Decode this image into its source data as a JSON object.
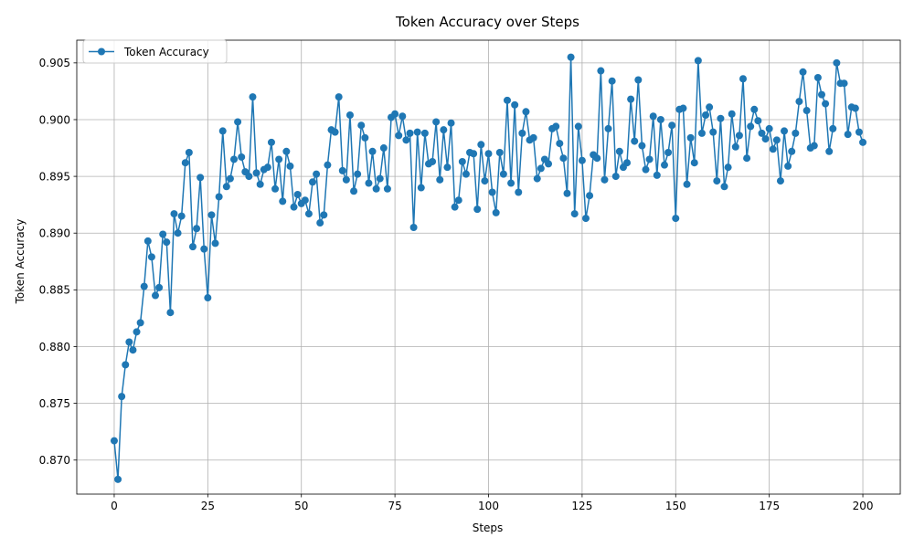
{
  "chart_data": {
    "type": "line",
    "title": "Token Accuracy over Steps",
    "xlabel": "Steps",
    "ylabel": "Token Accuracy",
    "xlim": [
      -10,
      210
    ],
    "ylim": [
      0.867,
      0.907
    ],
    "xticks": [
      0,
      25,
      50,
      75,
      100,
      125,
      150,
      175,
      200
    ],
    "xtick_labels": [
      "0",
      "25",
      "50",
      "75",
      "100",
      "125",
      "150",
      "175",
      "200"
    ],
    "yticks": [
      0.87,
      0.875,
      0.88,
      0.885,
      0.89,
      0.895,
      0.9,
      0.905
    ],
    "ytick_labels": [
      "0.870",
      "0.875",
      "0.880",
      "0.885",
      "0.890",
      "0.895",
      "0.900",
      "0.905"
    ],
    "grid": true,
    "legend_position": "top-left",
    "series": [
      {
        "name": "Token Accuracy",
        "color": "#1f77b4",
        "marker": "circle",
        "y": [
          0.8717,
          0.8683,
          0.8756,
          0.8784,
          0.8804,
          0.8797,
          0.8813,
          0.8821,
          0.8853,
          0.8893,
          0.8879,
          0.8845,
          0.8852,
          0.8899,
          0.8892,
          0.883,
          0.8917,
          0.89,
          0.8915,
          0.8962,
          0.8971,
          0.8888,
          0.8904,
          0.8949,
          0.8886,
          0.8843,
          0.8916,
          0.8891,
          0.8932,
          0.899,
          0.8941,
          0.8948,
          0.8965,
          0.8998,
          0.8967,
          0.8954,
          0.895,
          0.902,
          0.8953,
          0.8943,
          0.8956,
          0.8958,
          0.898,
          0.8939,
          0.8965,
          0.8928,
          0.8972,
          0.8959,
          0.8923,
          0.8934,
          0.8926,
          0.8929,
          0.8917,
          0.8945,
          0.8952,
          0.8909,
          0.8916,
          0.896,
          0.8991,
          0.8989,
          0.902,
          0.8955,
          0.8947,
          0.9004,
          0.8937,
          0.8952,
          0.8995,
          0.8984,
          0.8944,
          0.8972,
          0.8939,
          0.8948,
          0.8975,
          0.8939,
          0.9002,
          0.9005,
          0.8986,
          0.9003,
          0.8982,
          0.8988,
          0.8905,
          0.8989,
          0.894,
          0.8988,
          0.8961,
          0.8963,
          0.8998,
          0.8947,
          0.8991,
          0.8958,
          0.8997,
          0.8923,
          0.8929,
          0.8963,
          0.8952,
          0.8971,
          0.897,
          0.8921,
          0.8978,
          0.8946,
          0.897,
          0.8936,
          0.8918,
          0.8971,
          0.8952,
          0.9017,
          0.8944,
          0.9013,
          0.8936,
          0.8988,
          0.9007,
          0.8982,
          0.8984,
          0.8948,
          0.8957,
          0.8965,
          0.8961,
          0.8992,
          0.8994,
          0.8979,
          0.8966,
          0.8935,
          0.9055,
          0.8917,
          0.8994,
          0.8964,
          0.8913,
          0.8933,
          0.8969,
          0.8966,
          0.9043,
          0.8947,
          0.8992,
          0.9034,
          0.895,
          0.8972,
          0.8958,
          0.8962,
          0.9018,
          0.8981,
          0.9035,
          0.8977,
          0.8956,
          0.8965,
          0.9003,
          0.8951,
          0.9,
          0.896,
          0.8971,
          0.8995,
          0.8913,
          0.9009,
          0.901,
          0.8943,
          0.8984,
          0.8962,
          0.9052,
          0.8988,
          0.9004,
          0.9011,
          0.8989,
          0.8946,
          0.9001,
          0.8941,
          0.8958,
          0.9005,
          0.8976,
          0.8986,
          0.9036,
          0.8966,
          0.8994,
          0.9009,
          0.8999,
          0.8988,
          0.8983,
          0.8992,
          0.8974,
          0.8982,
          0.8946,
          0.899,
          0.8959,
          0.8972,
          0.8988,
          0.9016,
          0.9042,
          0.9008,
          0.8975,
          0.8977,
          0.9037,
          0.9022,
          0.9014,
          0.8972,
          0.8992,
          0.905,
          0.9032,
          0.9032,
          0.8987,
          0.9011,
          0.901,
          0.8989,
          0.898
        ]
      }
    ]
  }
}
